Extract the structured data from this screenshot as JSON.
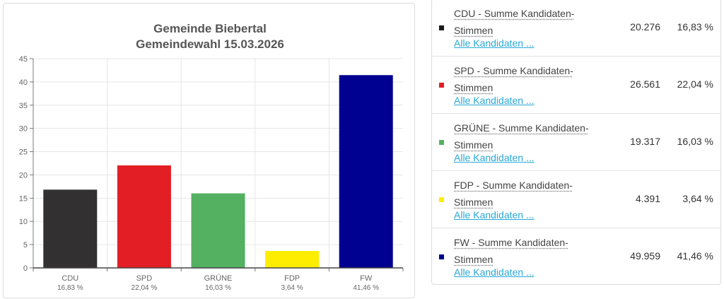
{
  "chart_data": {
    "type": "bar",
    "title": "Gemeinde Biebertal",
    "subtitle": "Gemeindewahl 15.03.2026",
    "categories": [
      "CDU",
      "SPD",
      "GRÜNE",
      "FDP",
      "FW"
    ],
    "category_sublabels": [
      "16,83 %",
      "22,04 %",
      "16,03 %",
      "3,64 %",
      "41,46 %"
    ],
    "values": [
      16.83,
      22.04,
      16.03,
      3.64,
      41.46
    ],
    "colors": [
      "#323031",
      "#e31e24",
      "#53b161",
      "#ffed00",
      "#000091"
    ],
    "ylim": [
      0,
      45
    ],
    "yticks": [
      0,
      5,
      10,
      15,
      20,
      25,
      30,
      35,
      40,
      45
    ],
    "grid": true
  },
  "results": [
    {
      "line1": "CDU - Summe Kandidaten-",
      "line2": "Stimmen",
      "link": "Alle Kandidaten ...",
      "votes": "20.276",
      "percent": "16,83 %",
      "color": "#1a1a1a"
    },
    {
      "line1": "SPD - Summe Kandidaten-",
      "line2": "Stimmen",
      "link": "Alle Kandidaten ...",
      "votes": "26.561",
      "percent": "22,04 %",
      "color": "#e31e24"
    },
    {
      "line1": "GRÜNE - Summe Kandidaten-",
      "line2": "Stimmen",
      "link": "Alle Kandidaten ...",
      "votes": "19.317",
      "percent": "16,03 %",
      "color": "#53b161"
    },
    {
      "line1": "FDP - Summe Kandidaten-",
      "line2": "Stimmen",
      "link": "Alle Kandidaten ...",
      "votes": "4.391",
      "percent": "3,64 %",
      "color": "#ffed00"
    },
    {
      "line1": "FW - Summe Kandidaten-",
      "line2": "Stimmen",
      "link": "Alle Kandidaten ...",
      "votes": "49.959",
      "percent": "41,46 %",
      "color": "#000091"
    }
  ]
}
